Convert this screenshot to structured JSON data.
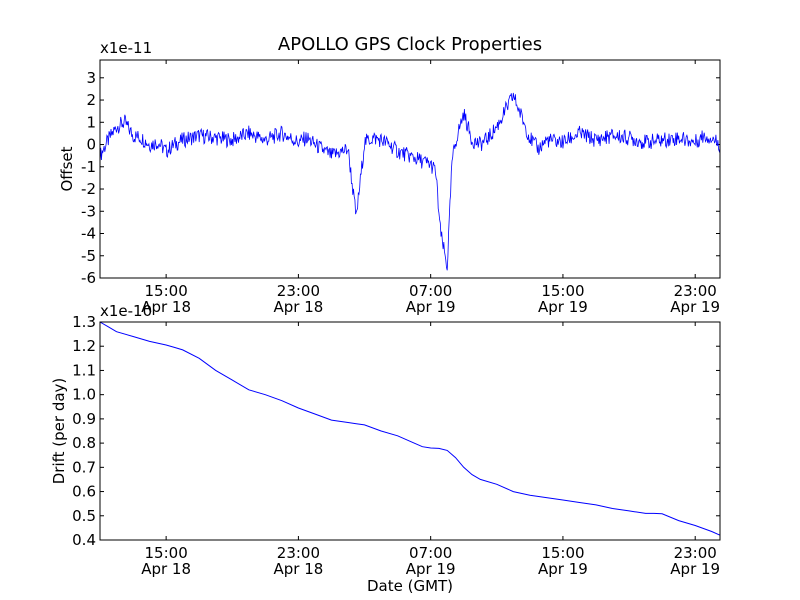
{
  "title": "APOLLO GPS Clock Properties",
  "chart_data": [
    {
      "type": "line",
      "name": "offset",
      "title": "APOLLO GPS Clock Properties",
      "xlabel": "",
      "ylabel": "Offset",
      "multiplier": "x1e-11",
      "color": "#0000ff",
      "x_unit": "hours since Apr 18 11:00 GMT",
      "xlim": [
        0,
        37.5
      ],
      "ylim": [
        -6,
        3.8
      ],
      "yticks": [
        3,
        2,
        1,
        0,
        -1,
        -2,
        -3,
        -4,
        -5,
        -6
      ],
      "ytick_labels": [
        "3",
        "2",
        "1",
        "0",
        "-1",
        "-2",
        "-3",
        "-4",
        "-5",
        "-6"
      ],
      "xticks": [
        4,
        12,
        20,
        28,
        36
      ],
      "xtick_labels": [
        [
          "15:00",
          "Apr 18"
        ],
        [
          "23:00",
          "Apr 18"
        ],
        [
          "07:00",
          "Apr 19"
        ],
        [
          "15:00",
          "Apr 19"
        ],
        [
          "23:00",
          "Apr 19"
        ]
      ],
      "series": [
        {
          "name": "Offset",
          "x": [
            0,
            0.5,
            1,
            1.5,
            2,
            2.5,
            3,
            3.5,
            4,
            4.5,
            5,
            6,
            7,
            8,
            9,
            10,
            11,
            12,
            12.5,
            13,
            14,
            15,
            15.5,
            16,
            16.5,
            17,
            17.5,
            18,
            19,
            20,
            20.3,
            20.6,
            21,
            21.3,
            21.6,
            22,
            22.5,
            23,
            23.5,
            24,
            25,
            26,
            26.5,
            27,
            28,
            29,
            30,
            31,
            32,
            33,
            34,
            35,
            36,
            36.5,
            37,
            37.5
          ],
          "y": [
            -0.5,
            0.2,
            0.8,
            1.0,
            0.4,
            0.3,
            0.0,
            0.1,
            -0.3,
            0.0,
            0.2,
            0.4,
            0.3,
            0.2,
            0.5,
            0.2,
            0.5,
            0.1,
            0.3,
            0.0,
            -0.5,
            -0.2,
            -3.3,
            0.1,
            0.3,
            0.2,
            0.0,
            -0.3,
            -0.6,
            -0.9,
            -1.2,
            -4.0,
            -5.5,
            -0.7,
            0.4,
            1.4,
            0.2,
            0.0,
            0.3,
            0.8,
            2.2,
            0.3,
            -0.2,
            0.2,
            0.1,
            0.5,
            0.2,
            0.4,
            0.3,
            0.1,
            0.2,
            0.3,
            0.1,
            0.4,
            0.3,
            0.0
          ]
        }
      ]
    },
    {
      "type": "line",
      "name": "drift",
      "title": "",
      "xlabel": "Date (GMT)",
      "ylabel": "Drift (per day)",
      "multiplier": "x1e-10",
      "color": "#0000ff",
      "x_unit": "hours since Apr 18 11:00 GMT",
      "xlim": [
        0,
        37.5
      ],
      "ylim": [
        0.4,
        1.3
      ],
      "yticks": [
        1.3,
        1.2,
        1.1,
        1.0,
        0.9,
        0.8,
        0.7,
        0.6,
        0.5,
        0.4
      ],
      "ytick_labels": [
        "1.3",
        "1.2",
        "1.1",
        "1.0",
        "0.9",
        "0.8",
        "0.7",
        "0.6",
        "0.5",
        "0.4"
      ],
      "xticks": [
        4,
        12,
        20,
        28,
        36
      ],
      "xtick_labels": [
        [
          "15:00",
          "Apr 18"
        ],
        [
          "23:00",
          "Apr 18"
        ],
        [
          "07:00",
          "Apr 19"
        ],
        [
          "15:00",
          "Apr 19"
        ],
        [
          "23:00",
          "Apr 19"
        ]
      ],
      "series": [
        {
          "name": "Drift",
          "x": [
            0,
            0.5,
            1,
            2,
            3,
            4,
            4.5,
            5,
            6,
            7,
            8,
            9,
            10,
            11,
            12,
            13,
            14,
            15,
            15.5,
            16,
            17,
            18,
            19,
            19.5,
            20,
            20.5,
            21,
            21.5,
            22,
            22.5,
            23,
            24,
            25,
            26,
            27,
            28,
            29,
            30,
            31,
            32,
            33,
            33.5,
            34,
            35,
            36,
            37,
            37.5
          ],
          "y": [
            1.3,
            1.28,
            1.26,
            1.24,
            1.22,
            1.205,
            1.195,
            1.185,
            1.15,
            1.1,
            1.06,
            1.02,
            1.0,
            0.975,
            0.945,
            0.92,
            0.895,
            0.885,
            0.88,
            0.875,
            0.85,
            0.83,
            0.8,
            0.785,
            0.78,
            0.778,
            0.77,
            0.74,
            0.7,
            0.67,
            0.65,
            0.63,
            0.6,
            0.585,
            0.575,
            0.565,
            0.555,
            0.545,
            0.53,
            0.52,
            0.51,
            0.51,
            0.508,
            0.48,
            0.46,
            0.435,
            0.42
          ]
        }
      ]
    }
  ]
}
